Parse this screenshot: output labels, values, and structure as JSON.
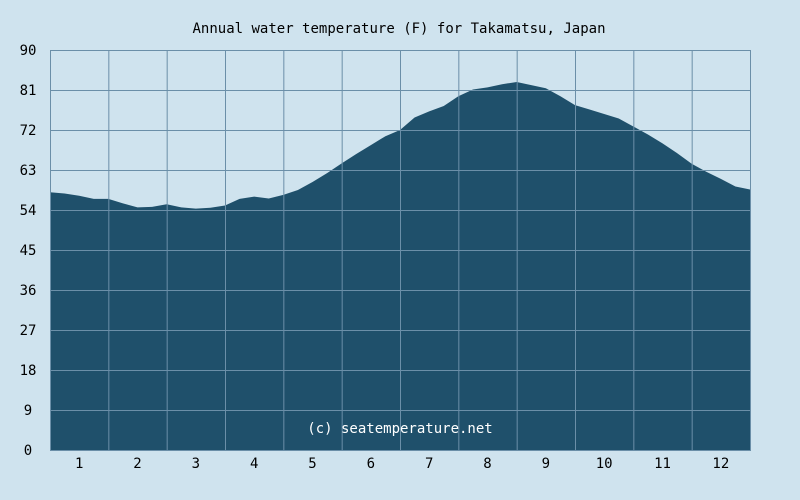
{
  "chart_data": {
    "type": "area",
    "title": "Annual water temperature (F) for Takamatsu, Japan",
    "xlabel": "",
    "ylabel": "",
    "ylim": [
      0,
      90
    ],
    "yticks": [
      0,
      9,
      18,
      27,
      36,
      45,
      54,
      63,
      72,
      81,
      90
    ],
    "xlim": [
      0.5,
      12.5
    ],
    "xticks": [
      "1",
      "2",
      "3",
      "4",
      "5",
      "6",
      "7",
      "8",
      "9",
      "10",
      "11",
      "12"
    ],
    "grid": true,
    "legend": "none",
    "watermark": "(c) seatemperature.net",
    "colors": {
      "background": "#cfe3ee",
      "fill": "#1f506b",
      "grid": "#6b8fa8"
    },
    "x": [
      0.5,
      0.75,
      1.0,
      1.25,
      1.5,
      1.75,
      2.0,
      2.25,
      2.5,
      2.75,
      3.0,
      3.25,
      3.5,
      3.75,
      4.0,
      4.25,
      4.5,
      4.75,
      5.0,
      5.25,
      5.5,
      5.75,
      6.0,
      6.25,
      6.5,
      6.75,
      7.0,
      7.25,
      7.5,
      7.75,
      8.0,
      8.25,
      8.5,
      8.75,
      9.0,
      9.25,
      9.5,
      9.75,
      10.0,
      10.25,
      10.5,
      10.75,
      11.0,
      11.25,
      11.5,
      11.75,
      12.0,
      12.25,
      12.5
    ],
    "y": [
      58,
      57.7,
      57.2,
      56.5,
      56.5,
      55.5,
      54.6,
      54.7,
      55.3,
      54.6,
      54.3,
      54.5,
      55.0,
      56.5,
      57.0,
      56.6,
      57.4,
      58.5,
      60.3,
      62.3,
      64.5,
      66.6,
      68.6,
      70.6,
      72.0,
      74.8,
      76.2,
      77.4,
      79.6,
      81.1,
      81.6,
      82.3,
      82.8,
      82.1,
      81.4,
      79.6,
      77.6,
      76.6,
      75.6,
      74.6,
      72.8,
      71.0,
      69.0,
      66.8,
      64.4,
      62.6,
      61.0,
      59.3,
      58.6
    ]
  }
}
